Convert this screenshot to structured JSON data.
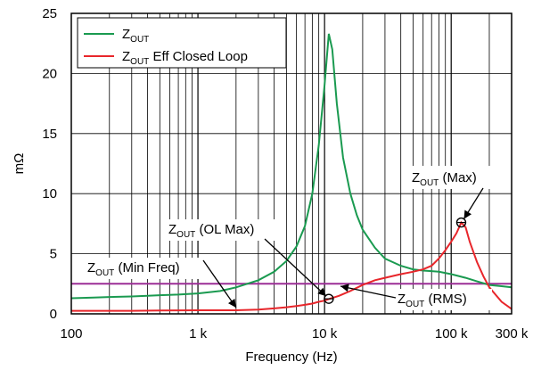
{
  "chart_data": {
    "type": "line",
    "xscale": "log",
    "xlim": [
      100,
      300000
    ],
    "ylim": [
      0,
      25
    ],
    "xlabel": "Frequency (Hz)",
    "ylabel": "mΩ",
    "x_ticks": [
      {
        "value": 100,
        "label": "100"
      },
      {
        "value": 1000,
        "label": "1 k"
      },
      {
        "value": 10000,
        "label": "10 k"
      },
      {
        "value": 100000,
        "label": "100 k"
      },
      {
        "value": 300000,
        "label": "300 k"
      }
    ],
    "y_ticks": [
      0,
      5,
      10,
      15,
      20,
      25
    ],
    "grid": true,
    "legend_position": "top-left",
    "series": [
      {
        "name_main": "Z",
        "name_sub": "OUT",
        "name_rest": "",
        "color": "#1a9a50",
        "points": [
          [
            100,
            1.3
          ],
          [
            150,
            1.35
          ],
          [
            200,
            1.4
          ],
          [
            300,
            1.45
          ],
          [
            400,
            1.5
          ],
          [
            500,
            1.55
          ],
          [
            700,
            1.6
          ],
          [
            1000,
            1.7
          ],
          [
            1500,
            1.9
          ],
          [
            2000,
            2.2
          ],
          [
            3000,
            2.8
          ],
          [
            4000,
            3.5
          ],
          [
            5000,
            4.4
          ],
          [
            6000,
            5.6
          ],
          [
            7000,
            7.3
          ],
          [
            8000,
            10.0
          ],
          [
            9000,
            14.0
          ],
          [
            10000,
            19.0
          ],
          [
            10800,
            23.3
          ],
          [
            11500,
            22.0
          ],
          [
            12500,
            17.5
          ],
          [
            14000,
            13.0
          ],
          [
            16000,
            10.0
          ],
          [
            18000,
            8.2
          ],
          [
            20000,
            7.0
          ],
          [
            25000,
            5.5
          ],
          [
            30000,
            4.6
          ],
          [
            40000,
            4.0
          ],
          [
            50000,
            3.7
          ],
          [
            60000,
            3.6
          ],
          [
            70000,
            3.55
          ],
          [
            80000,
            3.5
          ],
          [
            100000,
            3.3
          ],
          [
            130000,
            3.0
          ],
          [
            160000,
            2.7
          ],
          [
            200000,
            2.4
          ],
          [
            250000,
            2.3
          ],
          [
            300000,
            2.2
          ]
        ]
      },
      {
        "name_main": "Z",
        "name_sub": "OUT",
        "name_rest": " Eff Closed Loop",
        "color": "#e8262b",
        "points": [
          [
            100,
            0.25
          ],
          [
            300,
            0.25
          ],
          [
            500,
            0.28
          ],
          [
            1000,
            0.3
          ],
          [
            1500,
            0.3
          ],
          [
            2000,
            0.3
          ],
          [
            3000,
            0.35
          ],
          [
            4000,
            0.45
          ],
          [
            5000,
            0.55
          ],
          [
            6000,
            0.65
          ],
          [
            7000,
            0.75
          ],
          [
            8000,
            0.85
          ],
          [
            9000,
            1.0
          ],
          [
            10000,
            1.1
          ],
          [
            11000,
            1.25
          ],
          [
            13000,
            1.5
          ],
          [
            16000,
            1.9
          ],
          [
            20000,
            2.4
          ],
          [
            25000,
            2.8
          ],
          [
            30000,
            3.0
          ],
          [
            40000,
            3.3
          ],
          [
            50000,
            3.5
          ],
          [
            60000,
            3.7
          ],
          [
            70000,
            4.0
          ],
          [
            80000,
            4.6
          ],
          [
            90000,
            5.3
          ],
          [
            100000,
            6.0
          ],
          [
            110000,
            6.7
          ],
          [
            120000,
            7.6
          ],
          [
            130000,
            7.2
          ],
          [
            140000,
            6.0
          ],
          [
            160000,
            4.3
          ],
          [
            180000,
            3.1
          ],
          [
            200000,
            2.2
          ],
          [
            250000,
            1.0
          ],
          [
            300000,
            0.4
          ]
        ]
      },
      {
        "name_main": "",
        "name_sub": "",
        "name_rest": "",
        "color": "#9b2d96",
        "points": [
          [
            100,
            2.5
          ],
          [
            300000,
            2.5
          ]
        ]
      }
    ],
    "markers": [
      {
        "x": 10800,
        "y": 1.25
      },
      {
        "x": 120000,
        "y": 7.6
      }
    ],
    "annotations": [
      {
        "main": "Z",
        "sub": "OUT",
        "rest": " (Max)"
      },
      {
        "main": "Z",
        "sub": "OUT",
        "rest": " (OL Max)"
      },
      {
        "main": "Z",
        "sub": "OUT",
        "rest": " (Min Freq)"
      },
      {
        "main": "Z",
        "sub": "OUT",
        "rest": " (RMS)"
      }
    ]
  }
}
